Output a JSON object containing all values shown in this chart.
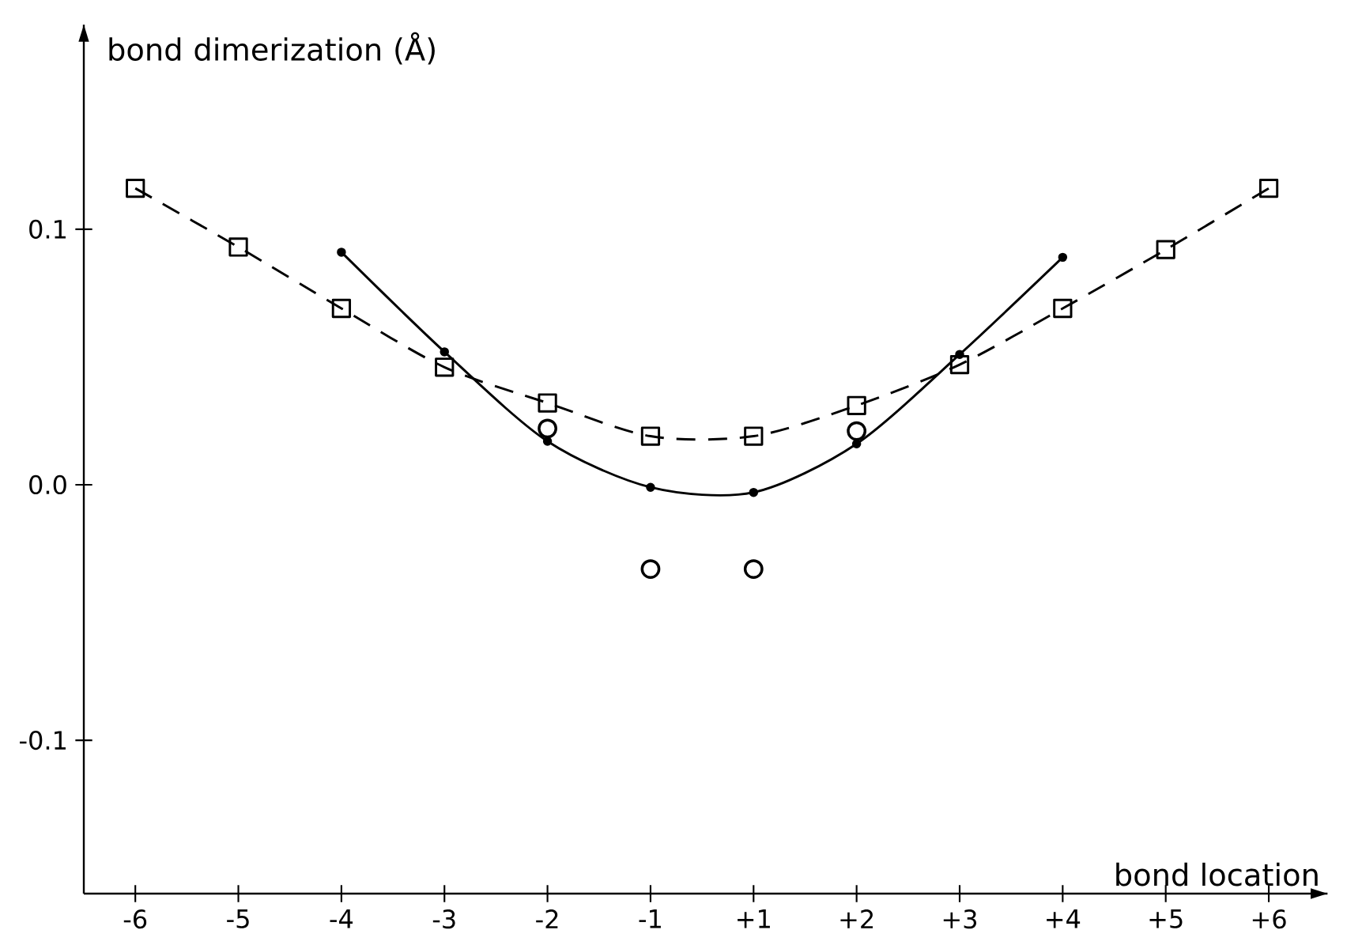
{
  "chart_data": {
    "type": "line",
    "xlabel": "bond location",
    "ylabel": "bond dimerization (Å)",
    "categories": [
      "-6",
      "-5",
      "-4",
      "-3",
      "-2",
      "-1",
      "+1",
      "+2",
      "+3",
      "+4",
      "+5",
      "+6"
    ],
    "ylim": [
      -0.16,
      0.18
    ],
    "yticks": [
      -0.1,
      {
        "value": 0,
        "label": "0.0"
      },
      0.1
    ],
    "grid": false,
    "series": [
      {
        "color": "#000000",
        "marker": "square",
        "line_style": "dashed",
        "values": [
          0.116,
          0.093,
          0.069,
          0.046,
          0.032,
          0.019,
          0.019,
          0.031,
          0.047,
          0.069,
          0.092,
          0.116
        ]
      },
      {
        "color": "#000000",
        "marker": "circle",
        "line_style": "solid",
        "values": [
          null,
          null,
          0.091,
          0.052,
          0.017,
          -0.001,
          -0.003,
          0.016,
          0.051,
          0.089,
          null,
          null
        ]
      },
      {
        "type": "scatter",
        "color": "#000000",
        "marker": "circle",
        "values": [
          null,
          null,
          null,
          null,
          0.022,
          -0.033,
          -0.033,
          0.021,
          null,
          null,
          null,
          null
        ]
      }
    ]
  }
}
